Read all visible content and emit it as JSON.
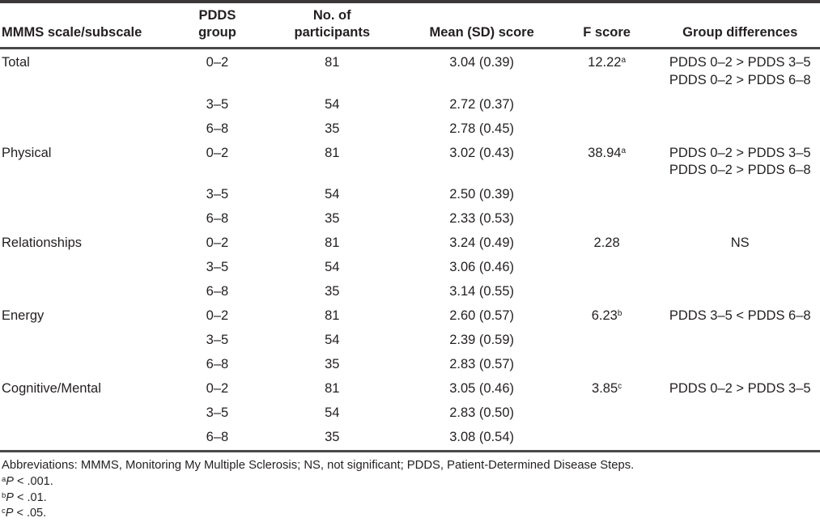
{
  "colors": {
    "text": "#231f20",
    "rule": "#4a4849",
    "background": "#ffffff"
  },
  "table": {
    "header": {
      "scale": "MMMS scale/subscale",
      "pdds_line1": "PDDS",
      "pdds_line2": "group",
      "participants_line1": "No. of",
      "participants_line2": "participants",
      "mean": "Mean (SD) score",
      "f": "F score",
      "diff": "Group differences"
    },
    "sections": [
      {
        "scale": "Total",
        "f_score": "12.22",
        "f_sup": "a",
        "diffs": [
          "PDDS 0–2 > PDDS 3–5",
          "PDDS 0–2 > PDDS 6–8"
        ],
        "rows": [
          {
            "group": "0–2",
            "n": "81",
            "mean": "3.04 (0.39)"
          },
          {
            "group": "3–5",
            "n": "54",
            "mean": "2.72 (0.37)"
          },
          {
            "group": "6–8",
            "n": "35",
            "mean": "2.78 (0.45)"
          }
        ]
      },
      {
        "scale": "Physical",
        "f_score": "38.94",
        "f_sup": "a",
        "diffs": [
          "PDDS 0–2 > PDDS 3–5",
          "PDDS 0–2 > PDDS 6–8"
        ],
        "rows": [
          {
            "group": "0–2",
            "n": "81",
            "mean": "3.02 (0.43)"
          },
          {
            "group": "3–5",
            "n": "54",
            "mean": "2.50 (0.39)"
          },
          {
            "group": "6–8",
            "n": "35",
            "mean": "2.33 (0.53)"
          }
        ]
      },
      {
        "scale": "Relationships",
        "f_score": "2.28",
        "f_sup": "",
        "diffs": [
          "NS"
        ],
        "rows": [
          {
            "group": "0–2",
            "n": "81",
            "mean": "3.24 (0.49)"
          },
          {
            "group": "3–5",
            "n": "54",
            "mean": "3.06 (0.46)"
          },
          {
            "group": "6–8",
            "n": "35",
            "mean": "3.14 (0.55)"
          }
        ]
      },
      {
        "scale": "Energy",
        "f_score": "6.23",
        "f_sup": "b",
        "diffs": [
          "PDDS 3–5 < PDDS 6–8"
        ],
        "rows": [
          {
            "group": "0–2",
            "n": "81",
            "mean": "2.60 (0.57)"
          },
          {
            "group": "3–5",
            "n": "54",
            "mean": "2.39 (0.59)"
          },
          {
            "group": "6–8",
            "n": "35",
            "mean": "2.83 (0.57)"
          }
        ]
      },
      {
        "scale": "Cognitive/Mental",
        "f_score": "3.85",
        "f_sup": "c",
        "diffs": [
          "PDDS 0–2 > PDDS 3–5"
        ],
        "rows": [
          {
            "group": "0–2",
            "n": "81",
            "mean": "3.05 (0.46)"
          },
          {
            "group": "3–5",
            "n": "54",
            "mean": "2.83 (0.50)"
          },
          {
            "group": "6–8",
            "n": "35",
            "mean": "3.08 (0.54)"
          }
        ]
      }
    ],
    "footnotes": {
      "abbreviations": "Abbreviations: MMMS, Monitoring My Multiple Sclerosis; NS, not significant; PDDS, Patient-Determined Disease Steps.",
      "notes": [
        {
          "sup": "a",
          "p": "P",
          "rest": " < .001."
        },
        {
          "sup": "b",
          "p": "P",
          "rest": " < .01."
        },
        {
          "sup": "c",
          "p": "P",
          "rest": " < .05."
        }
      ]
    }
  }
}
